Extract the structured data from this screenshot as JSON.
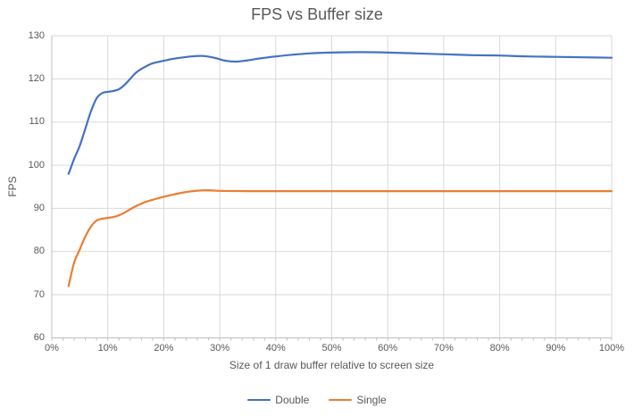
{
  "chart_data": {
    "type": "line",
    "title": "FPS vs Buffer size",
    "xlabel": "Size of 1 draw buffer relative to screen size",
    "ylabel": "FPS",
    "xlim": [
      0,
      100
    ],
    "ylim": [
      60,
      130
    ],
    "grid": true,
    "legend_position": "bottom",
    "x_ticks": [
      {
        "value": 0,
        "label": "0%"
      },
      {
        "value": 10,
        "label": "10%"
      },
      {
        "value": 20,
        "label": "20%"
      },
      {
        "value": 30,
        "label": "30%"
      },
      {
        "value": 40,
        "label": "40%"
      },
      {
        "value": 50,
        "label": "50%"
      },
      {
        "value": 60,
        "label": "60%"
      },
      {
        "value": 70,
        "label": "70%"
      },
      {
        "value": 80,
        "label": "80%"
      },
      {
        "value": 90,
        "label": "90%"
      },
      {
        "value": 100,
        "label": "100%"
      }
    ],
    "x_minor_tick_step": 2,
    "y_ticks": [
      {
        "value": 60,
        "label": "60"
      },
      {
        "value": 70,
        "label": "70"
      },
      {
        "value": 80,
        "label": "80"
      },
      {
        "value": 90,
        "label": "90"
      },
      {
        "value": 100,
        "label": "100"
      },
      {
        "value": 110,
        "label": "110"
      },
      {
        "value": 120,
        "label": "120"
      },
      {
        "value": 130,
        "label": "130"
      }
    ],
    "colors": {
      "gridline": "#D9D9D9",
      "axis_line": "#BFBFBF",
      "text": "#595959"
    },
    "series": [
      {
        "name": "Double",
        "color": "#4472C4",
        "points": [
          [
            3,
            98
          ],
          [
            4,
            101.5
          ],
          [
            5,
            104.5
          ],
          [
            6,
            108.5
          ],
          [
            7,
            112.5
          ],
          [
            8,
            115.5
          ],
          [
            9,
            116.7
          ],
          [
            10,
            117
          ],
          [
            11,
            117.2
          ],
          [
            12,
            117.6
          ],
          [
            13,
            118.6
          ],
          [
            14,
            120
          ],
          [
            15,
            121.4
          ],
          [
            16,
            122.3
          ],
          [
            17,
            123
          ],
          [
            18,
            123.6
          ],
          [
            20,
            124.2
          ],
          [
            22,
            124.7
          ],
          [
            25,
            125.2
          ],
          [
            27,
            125.3
          ],
          [
            29,
            124.9
          ],
          [
            31,
            124.2
          ],
          [
            33,
            124
          ],
          [
            35,
            124.3
          ],
          [
            37,
            124.7
          ],
          [
            40,
            125.2
          ],
          [
            43,
            125.6
          ],
          [
            46,
            125.9
          ],
          [
            50,
            126.1
          ],
          [
            55,
            126.2
          ],
          [
            60,
            126.1
          ],
          [
            65,
            125.9
          ],
          [
            70,
            125.7
          ],
          [
            75,
            125.5
          ],
          [
            80,
            125.4
          ],
          [
            85,
            125.2
          ],
          [
            90,
            125.1
          ],
          [
            95,
            125
          ],
          [
            100,
            124.9
          ]
        ]
      },
      {
        "name": "Single",
        "color": "#ED7D31",
        "points": [
          [
            3,
            72
          ],
          [
            4,
            77.5
          ],
          [
            5,
            80.5
          ],
          [
            6,
            83.5
          ],
          [
            7,
            85.8
          ],
          [
            8,
            87.2
          ],
          [
            9,
            87.6
          ],
          [
            10,
            87.8
          ],
          [
            11,
            88
          ],
          [
            12,
            88.4
          ],
          [
            13,
            89
          ],
          [
            14,
            89.8
          ],
          [
            15,
            90.5
          ],
          [
            16,
            91.1
          ],
          [
            17,
            91.6
          ],
          [
            18,
            92
          ],
          [
            20,
            92.7
          ],
          [
            22,
            93.3
          ],
          [
            24,
            93.8
          ],
          [
            26,
            94.1
          ],
          [
            28,
            94.2
          ],
          [
            30,
            94.05
          ],
          [
            35,
            94
          ],
          [
            40,
            94
          ],
          [
            45,
            94
          ],
          [
            50,
            94
          ],
          [
            55,
            94
          ],
          [
            60,
            94
          ],
          [
            65,
            94
          ],
          [
            70,
            94
          ],
          [
            75,
            94
          ],
          [
            80,
            94
          ],
          [
            85,
            94
          ],
          [
            90,
            94
          ],
          [
            95,
            94
          ],
          [
            100,
            94
          ]
        ]
      }
    ]
  }
}
